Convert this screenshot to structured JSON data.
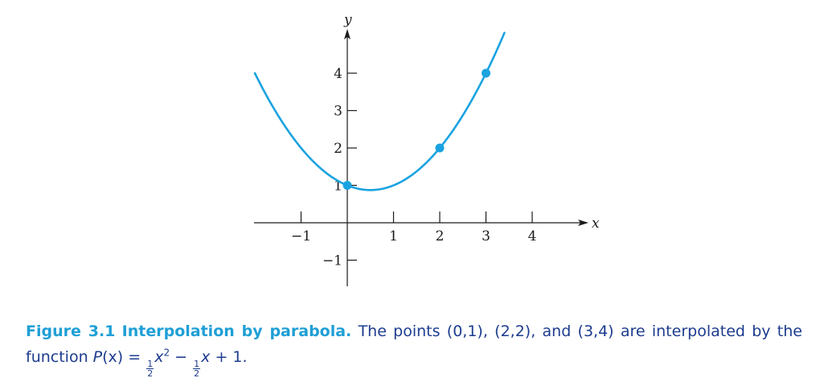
{
  "chart_data": {
    "type": "line",
    "xlabel": "x",
    "ylabel": "y",
    "xlim": [
      -2.0,
      5.0
    ],
    "ylim": [
      -1.5,
      5.2
    ],
    "x_ticks": [
      -1,
      1,
      2,
      3,
      4
    ],
    "x_tick_labels": [
      "−1",
      "1",
      "2",
      "3",
      "4"
    ],
    "y_ticks": [
      -1,
      1,
      2,
      3,
      4
    ],
    "y_tick_labels": [
      "−1",
      "1",
      "2",
      "3",
      "4"
    ],
    "curve": {
      "function": "P(x) = 1/2 x^2 - 1/2 x + 1",
      "coefficients": [
        0.5,
        -0.5,
        1
      ],
      "x_range": [
        -2.0,
        3.4
      ]
    },
    "points": [
      {
        "x": 0,
        "y": 1
      },
      {
        "x": 2,
        "y": 2
      },
      {
        "x": 3,
        "y": 4
      }
    ],
    "grid": false,
    "color": "#1aa3e0"
  },
  "caption": {
    "label": "Figure 3.1",
    "title": "Interpolation by parabola.",
    "body": "The points (0,1), (2,2), and (3,4) are interpolated by the function",
    "func_name": "P",
    "func_arg": "(x)",
    "eq": "=",
    "frac1_num": "1",
    "frac1_den": "2",
    "term1_var": "x",
    "term1_exp": "2",
    "minus": "−",
    "frac2_num": "1",
    "frac2_den": "2",
    "term2_var": "x",
    "tail": "+ 1."
  }
}
